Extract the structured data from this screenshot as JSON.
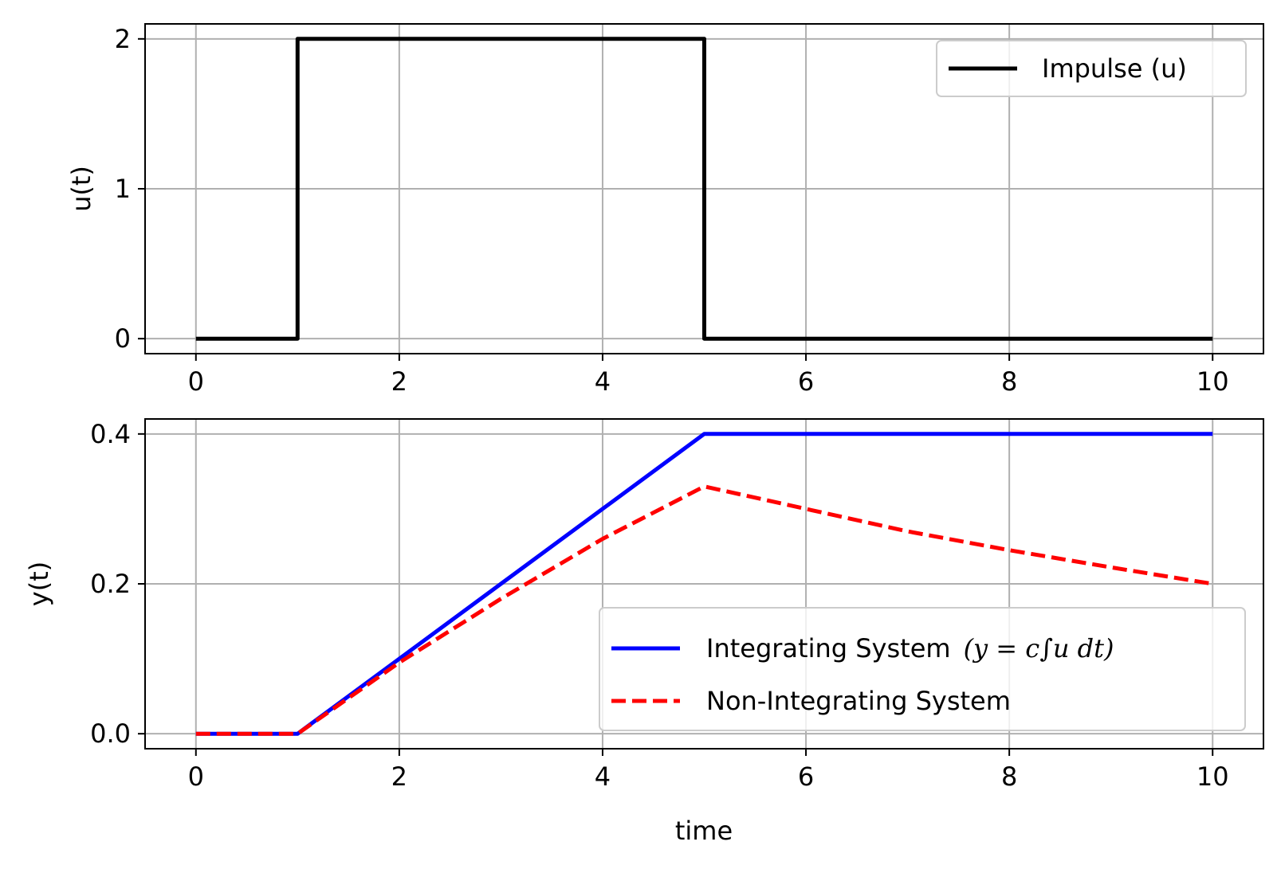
{
  "chart_data": [
    {
      "type": "line",
      "ylabel": "u(t)",
      "xlabel": "",
      "xlim": [
        -0.5,
        10.5
      ],
      "ylim": [
        -0.1,
        2.1
      ],
      "xticks": [
        "0",
        "2",
        "4",
        "6",
        "8",
        "10"
      ],
      "yticks": [
        "0",
        "1",
        "2"
      ],
      "grid": true,
      "legend_position": "upper-right",
      "series": [
        {
          "name": "Impulse (u)",
          "color": "#000000",
          "style": "solid",
          "x": [
            0,
            1,
            1,
            5,
            5,
            10
          ],
          "y": [
            0,
            0,
            2,
            2,
            0,
            0
          ]
        }
      ]
    },
    {
      "type": "line",
      "ylabel": "y(t)",
      "xlabel": "time",
      "xlim": [
        -0.5,
        10.5
      ],
      "ylim": [
        -0.02,
        0.42
      ],
      "xticks": [
        "0",
        "2",
        "4",
        "6",
        "8",
        "10"
      ],
      "yticks": [
        "0.0",
        "0.2",
        "0.4"
      ],
      "grid": true,
      "legend_position": "lower-right",
      "series": [
        {
          "name": "Integrating System",
          "name_math": "(y = c∫u dt)",
          "color": "#0000ff",
          "style": "solid",
          "x": [
            0,
            1,
            5,
            10
          ],
          "y": [
            0,
            0,
            0.4,
            0.4
          ]
        },
        {
          "name": "Non-Integrating System",
          "color": "#ff0000",
          "style": "dashed",
          "x": [
            0,
            1,
            2,
            3,
            4,
            5,
            6,
            7,
            8,
            9,
            10
          ],
          "y": [
            0,
            0,
            0.095,
            0.18,
            0.26,
            0.33,
            0.3,
            0.27,
            0.245,
            0.222,
            0.2
          ]
        }
      ]
    }
  ]
}
